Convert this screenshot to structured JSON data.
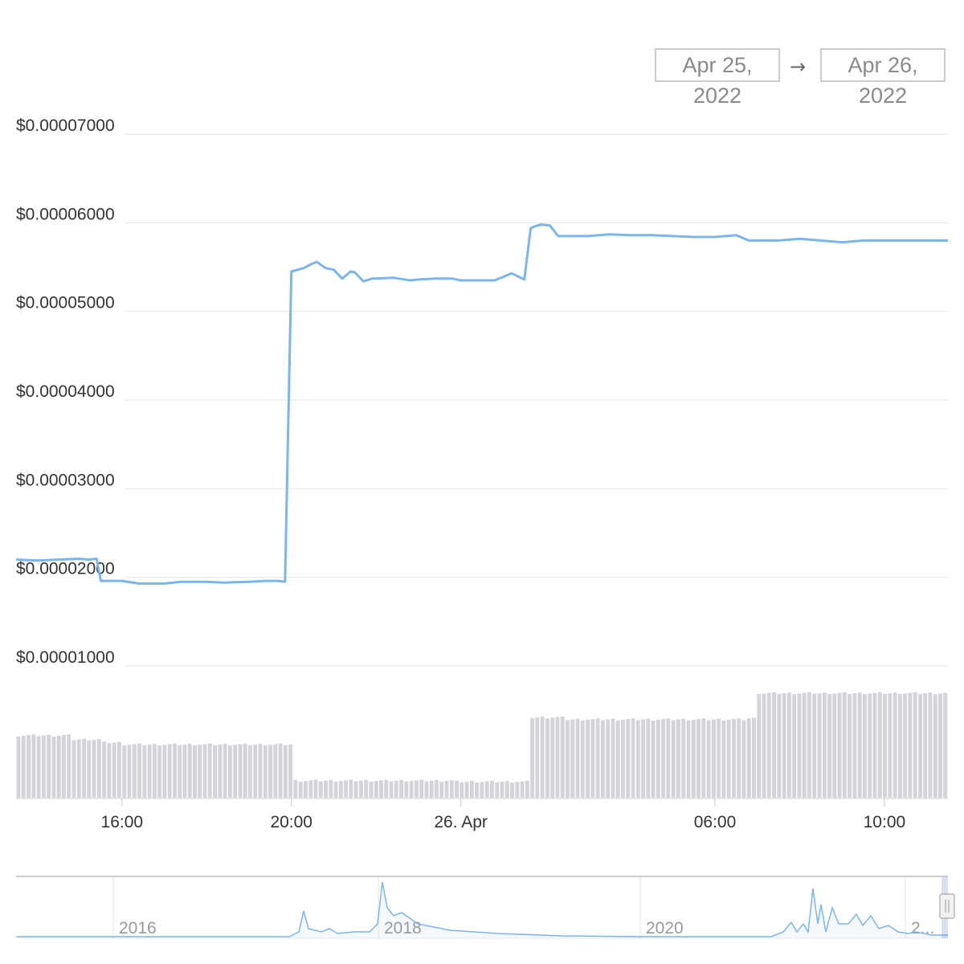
{
  "date_range": {
    "from": "Apr 25, 2022",
    "arrow": "→",
    "to": "Apr 26, 2022"
  },
  "colors": {
    "line": "#7cb5ec",
    "volume": "#d2d4da",
    "grid": "#e6e6e6",
    "navigator_border": "#cccccc"
  },
  "chart_data": {
    "type": "line",
    "title": "",
    "xlabel": "",
    "ylabel": "",
    "ylim": [
      1e-05,
      7e-05
    ],
    "y_ticks": [
      "$0.00007000",
      "$0.00006000",
      "$0.00005000",
      "$0.00004000",
      "$0.00003000",
      "$0.00002000",
      "$0.00001000"
    ],
    "y_tick_values": [
      7e-05,
      6e-05,
      5e-05,
      4e-05,
      3e-05,
      2e-05,
      1e-05
    ],
    "x_range_hours": [
      -10.5,
      11.5
    ],
    "x_ticks": [
      {
        "label": "16:00",
        "hour": -8
      },
      {
        "label": "20:00",
        "hour": -4
      },
      {
        "label": "26. Apr",
        "hour": 0
      },
      {
        "label": "06:00",
        "hour": 6
      },
      {
        "label": "10:00",
        "hour": 10
      }
    ],
    "series": [
      {
        "x_hours": [
          -10.5,
          -10.0,
          -9.5,
          -9.0,
          -8.8,
          -8.6,
          -8.5,
          -8.0,
          -7.6,
          -7.0,
          -6.6,
          -6.0,
          -5.6,
          -5.0,
          -4.6,
          -4.3,
          -4.15,
          -4.0,
          -3.7,
          -3.55,
          -3.4,
          -3.2,
          -3.0,
          -2.8,
          -2.6,
          -2.5,
          -2.3,
          -2.1,
          -2.0,
          -1.6,
          -1.2,
          -1.0,
          -0.6,
          -0.2,
          0.0,
          0.4,
          0.8,
          1.2,
          1.5,
          1.65,
          1.75,
          1.9,
          2.1,
          2.3,
          2.7,
          3.0,
          3.5,
          4.0,
          4.5,
          5.0,
          5.5,
          6.0,
          6.5,
          6.8,
          7.0,
          7.5,
          8.0,
          8.5,
          9.0,
          9.5,
          10.0,
          10.5,
          11.0,
          11.5
        ],
        "y": [
          2.2e-05,
          2.19e-05,
          2.2e-05,
          2.21e-05,
          2.2e-05,
          2.21e-05,
          1.96e-05,
          1.96e-05,
          1.93e-05,
          1.93e-05,
          1.95e-05,
          1.95e-05,
          1.94e-05,
          1.95e-05,
          1.96e-05,
          1.96e-05,
          1.95e-05,
          5.45e-05,
          5.49e-05,
          5.53e-05,
          5.56e-05,
          5.49e-05,
          5.47e-05,
          5.37e-05,
          5.45e-05,
          5.44e-05,
          5.34e-05,
          5.37e-05,
          5.37e-05,
          5.38e-05,
          5.35e-05,
          5.36e-05,
          5.37e-05,
          5.37e-05,
          5.35e-05,
          5.35e-05,
          5.35e-05,
          5.43e-05,
          5.36e-05,
          5.94e-05,
          5.96e-05,
          5.98e-05,
          5.97e-05,
          5.85e-05,
          5.85e-05,
          5.85e-05,
          5.87e-05,
          5.86e-05,
          5.86e-05,
          5.85e-05,
          5.84e-05,
          5.84e-05,
          5.86e-05,
          5.8e-05,
          5.8e-05,
          5.8e-05,
          5.82e-05,
          5.8e-05,
          5.78e-05,
          5.8e-05,
          5.8e-05,
          5.8e-05,
          5.8e-05,
          5.8e-05
        ]
      },
      {
        "name": "volume",
        "x_hours": [
          -10.5,
          -9.2,
          -8.5,
          -8.0,
          -4.2,
          -4.0,
          -0.2,
          0.0,
          1.6,
          2.5,
          5.0,
          6.8,
          7.0,
          11.5
        ],
        "relative_height": [
          0.62,
          0.58,
          0.55,
          0.53,
          0.53,
          0.17,
          0.16,
          0.16,
          0.8,
          0.78,
          0.78,
          0.79,
          1.04,
          1.05
        ]
      }
    ],
    "navigator": {
      "x_labels": [
        "2016",
        "2018",
        "2020",
        "2..."
      ]
    }
  }
}
